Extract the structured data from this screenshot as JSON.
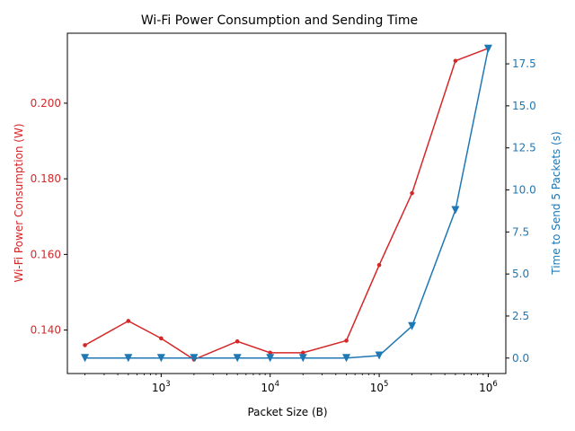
{
  "chart_data": {
    "type": "line",
    "title": "Wi-Fi Power Consumption and Sending Time",
    "xlabel": "Packet Size (B)",
    "x_scale": "log",
    "x_tick_labels": [
      {
        "value": 1000,
        "base": "10",
        "exp": "3"
      },
      {
        "value": 10000,
        "base": "10",
        "exp": "4"
      },
      {
        "value": 100000,
        "base": "10",
        "exp": "5"
      },
      {
        "value": 1000000,
        "base": "10",
        "exp": "6"
      }
    ],
    "x": [
      200,
      500,
      1000,
      2000,
      5000,
      10000,
      20000,
      50000,
      100000,
      200000,
      500000,
      1000000
    ],
    "series": [
      {
        "name": "Wi-Fi Power Consumption (W)",
        "axis": "left",
        "color": "#d62728",
        "marker": "circle",
        "values": [
          0.136,
          0.1424,
          0.1378,
          0.1322,
          0.137,
          0.134,
          0.134,
          0.1372,
          0.1572,
          0.1762,
          0.2112,
          0.2145
        ]
      },
      {
        "name": "Time to Send 5 Packets (s)",
        "axis": "right",
        "color": "#1f77b4",
        "marker": "triangle-down",
        "values": [
          0.0,
          0.0,
          0.0,
          0.0,
          0.0,
          0.0,
          0.0,
          0.0,
          0.15,
          1.9,
          8.8,
          18.4
        ]
      }
    ],
    "y_left": {
      "label": "Wi-Fi Power Consumption (W)",
      "ylim": [
        0.1285,
        0.2185
      ],
      "ticks": [
        "0.140",
        "0.160",
        "0.180",
        "0.200"
      ]
    },
    "y_right": {
      "label": "Time to Send 5 Packets (s)",
      "ylim": [
        -0.92,
        19.32
      ],
      "ticks": [
        "0.0",
        "2.5",
        "5.0",
        "7.5",
        "10.0",
        "12.5",
        "15.0",
        "17.5"
      ]
    },
    "colors": {
      "left_axis": "#d62728",
      "right_axis": "#1f77b4",
      "frame": "#000000"
    }
  }
}
